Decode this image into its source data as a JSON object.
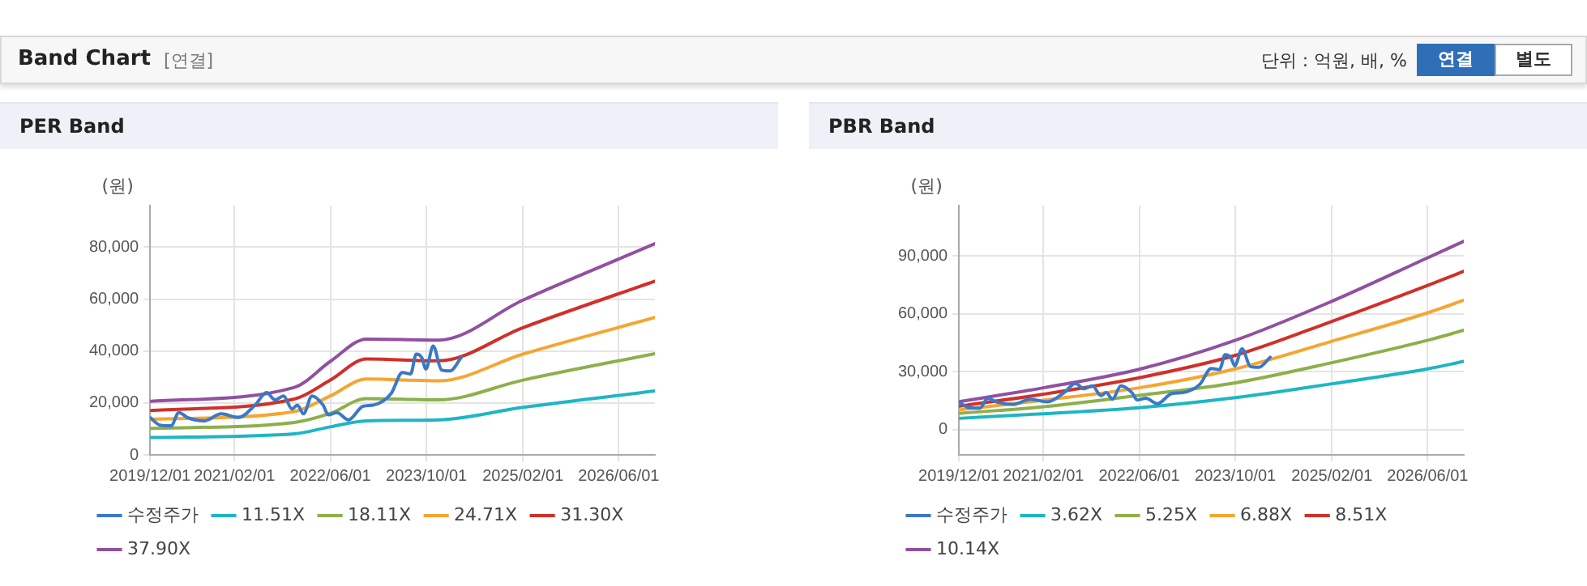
{
  "chart_data": [
    {
      "type": "line",
      "title": "PER Band",
      "ylabel": "(원)",
      "annotations": [
        "Band Chart",
        "[연결]",
        "단위 : 억원, 배, %",
        "연결",
        "별도"
      ],
      "xlim": [
        "2019-12-01",
        "2026-12-01"
      ],
      "xticks": [
        {
          "value": "2019-12-01",
          "label": "2019/12/01"
        },
        {
          "value": "2021-02-01",
          "label": "2021/02/01"
        },
        {
          "value": "2022-06-01",
          "label": "2022/06/01"
        },
        {
          "value": "2023-10-01",
          "label": "2023/10/01"
        },
        {
          "value": "2025-02-01",
          "label": "2025/02/01"
        },
        {
          "value": "2026-06-01",
          "label": "2026/06/01"
        }
      ],
      "ylim": [
        0,
        96000
      ],
      "yticks": [
        {
          "value": 0,
          "label": "0"
        },
        {
          "value": 20000,
          "label": "20,000"
        },
        {
          "value": 40000,
          "label": "40,000"
        },
        {
          "value": 60000,
          "label": "60,000"
        },
        {
          "value": 80000,
          "label": "80,000"
        }
      ],
      "grid": true,
      "legend": "bottom",
      "marker": "none",
      "series": [
        {
          "name": "수정주가",
          "color": "#3a78c8",
          "x": [
            "2019-12-01",
            "2020-01-19",
            "2020-03-16",
            "2020-04-25",
            "2020-06-07",
            "2020-09-01",
            "2020-11-25",
            "2021-02-21",
            "2021-05-16",
            "2021-07-13",
            "2021-08-25",
            "2021-10-07",
            "2021-11-19",
            "2021-12-16",
            "2022-01-16",
            "2022-02-28",
            "2022-04-25",
            "2022-05-22",
            "2022-07-04",
            "2022-09-01",
            "2022-11-13",
            "2023-01-07",
            "2023-04-04",
            "2023-06-01",
            "2023-07-13",
            "2023-08-10",
            "2023-09-07",
            "2023-09-28",
            "2023-11-04",
            "2023-12-16",
            "2024-01-28",
            "2024-03-25"
          ],
          "values": [
            14400,
            11500,
            11200,
            16300,
            14400,
            13100,
            15800,
            14400,
            19200,
            24000,
            21200,
            22700,
            17700,
            19200,
            15800,
            22700,
            19200,
            15400,
            16300,
            13500,
            18700,
            19200,
            23500,
            31700,
            31200,
            38800,
            37500,
            33100,
            41900,
            32700,
            32300,
            37500
          ]
        },
        {
          "name": "11.51X",
          "color": "#1fb5c4",
          "x": [
            "2019-12-01",
            "2021-12-01",
            "2022-06-01",
            "2022-12-01",
            "2023-12-01",
            "2025-02-01",
            "2026-12-01"
          ],
          "values": [
            6700,
            8100,
            10800,
            13100,
            13500,
            18300,
            24600
          ]
        },
        {
          "name": "18.11X",
          "color": "#8db04a",
          "x": [
            "2019-12-01",
            "2021-12-01",
            "2022-06-01",
            "2022-12-01",
            "2023-12-01",
            "2025-02-01",
            "2026-12-01"
          ],
          "values": [
            10200,
            12500,
            16000,
            21700,
            21200,
            28800,
            39000
          ]
        },
        {
          "name": "24.71X",
          "color": "#f5a631",
          "x": [
            "2019-12-01",
            "2021-12-01",
            "2022-06-01",
            "2022-12-01",
            "2023-12-01",
            "2025-02-01",
            "2026-12-01"
          ],
          "values": [
            13700,
            16700,
            22700,
            29200,
            28500,
            38800,
            52900
          ]
        },
        {
          "name": "31.30X",
          "color": "#d0302a",
          "x": [
            "2019-12-01",
            "2021-12-01",
            "2022-06-01",
            "2022-12-01",
            "2023-12-01",
            "2025-02-01",
            "2026-12-01"
          ],
          "values": [
            17100,
            21500,
            28800,
            36900,
            36200,
            49000,
            66900
          ]
        },
        {
          "name": "37.90X",
          "color": "#9150a0",
          "x": [
            "2019-12-01",
            "2021-12-01",
            "2022-06-01",
            "2022-12-01",
            "2023-12-01",
            "2025-02-01",
            "2026-12-01"
          ],
          "values": [
            20600,
            26000,
            36000,
            44600,
            44200,
            59600,
            81300
          ]
        }
      ]
    },
    {
      "type": "line",
      "title": "PBR Band",
      "ylabel": "(원)",
      "xlim": [
        "2019-12-01",
        "2026-12-01"
      ],
      "xticks": [
        {
          "value": "2019-12-01",
          "label": "2019/12/01"
        },
        {
          "value": "2021-02-01",
          "label": "2021/02/01"
        },
        {
          "value": "2022-06-01",
          "label": "2022/06/01"
        },
        {
          "value": "2023-10-01",
          "label": "2023/10/01"
        },
        {
          "value": "2025-02-01",
          "label": "2025/02/01"
        },
        {
          "value": "2026-06-01",
          "label": "2026/06/01"
        }
      ],
      "ylim": [
        -13000,
        116000
      ],
      "yticks": [
        {
          "value": 0,
          "label": "0"
        },
        {
          "value": 30000,
          "label": "30,000"
        },
        {
          "value": 60000,
          "label": "60,000"
        },
        {
          "value": 90000,
          "label": "90,000"
        }
      ],
      "grid": true,
      "legend": "bottom",
      "marker": "none",
      "series": [
        {
          "name": "수정주가",
          "color": "#3a78c8",
          "x": [
            "2019-12-01",
            "2020-01-19",
            "2020-03-16",
            "2020-04-25",
            "2020-06-07",
            "2020-09-01",
            "2020-11-25",
            "2021-02-21",
            "2021-05-16",
            "2021-07-13",
            "2021-08-25",
            "2021-10-07",
            "2021-11-19",
            "2021-12-16",
            "2022-01-16",
            "2022-02-28",
            "2022-04-25",
            "2022-05-22",
            "2022-07-04",
            "2022-09-01",
            "2022-11-13",
            "2023-01-07",
            "2023-04-04",
            "2023-06-01",
            "2023-07-13",
            "2023-08-10",
            "2023-09-07",
            "2023-09-28",
            "2023-11-04",
            "2023-12-16",
            "2024-01-28",
            "2024-03-25"
          ],
          "values": [
            14400,
            11500,
            11200,
            16300,
            14400,
            13100,
            15800,
            14400,
            19200,
            24000,
            21200,
            22700,
            17700,
            19200,
            15800,
            22700,
            19200,
            15400,
            16300,
            13500,
            18700,
            19200,
            23500,
            31700,
            31200,
            38800,
            37500,
            33100,
            41900,
            32700,
            32300,
            37500
          ]
        },
        {
          "name": "3.62X",
          "color": "#1fb5c4",
          "x": [
            "2019-12-01",
            "2021-02-01",
            "2022-06-01",
            "2023-10-01",
            "2025-02-01",
            "2026-06-01",
            "2026-12-01"
          ],
          "values": [
            5900,
            8300,
            11400,
            16600,
            23800,
            31500,
            35400
          ]
        },
        {
          "name": "5.25X",
          "color": "#8db04a",
          "x": [
            "2019-12-01",
            "2021-02-01",
            "2022-06-01",
            "2023-10-01",
            "2025-02-01",
            "2026-06-01",
            "2026-12-01"
          ],
          "values": [
            8500,
            11900,
            17800,
            24300,
            34700,
            46300,
            51500
          ]
        },
        {
          "name": "6.88X",
          "color": "#f5a631",
          "x": [
            "2019-12-01",
            "2021-02-01",
            "2022-06-01",
            "2023-10-01",
            "2025-02-01",
            "2026-06-01",
            "2026-12-01"
          ],
          "values": [
            10300,
            15300,
            21700,
            31500,
            45800,
            60500,
            67000
          ]
        },
        {
          "name": "8.51X",
          "color": "#d0302a",
          "x": [
            "2019-12-01",
            "2021-02-01",
            "2022-06-01",
            "2023-10-01",
            "2025-02-01",
            "2026-06-01",
            "2026-12-01"
          ],
          "values": [
            12200,
            18400,
            26900,
            38500,
            56100,
            74700,
            82000
          ]
        },
        {
          "name": "10.14X",
          "color": "#9150a0",
          "x": [
            "2019-12-01",
            "2021-02-01",
            "2022-06-01",
            "2023-10-01",
            "2025-02-01",
            "2026-06-01",
            "2026-12-01"
          ],
          "values": [
            14500,
            21700,
            31300,
            46300,
            66500,
            89000,
            97500
          ]
        }
      ]
    }
  ]
}
